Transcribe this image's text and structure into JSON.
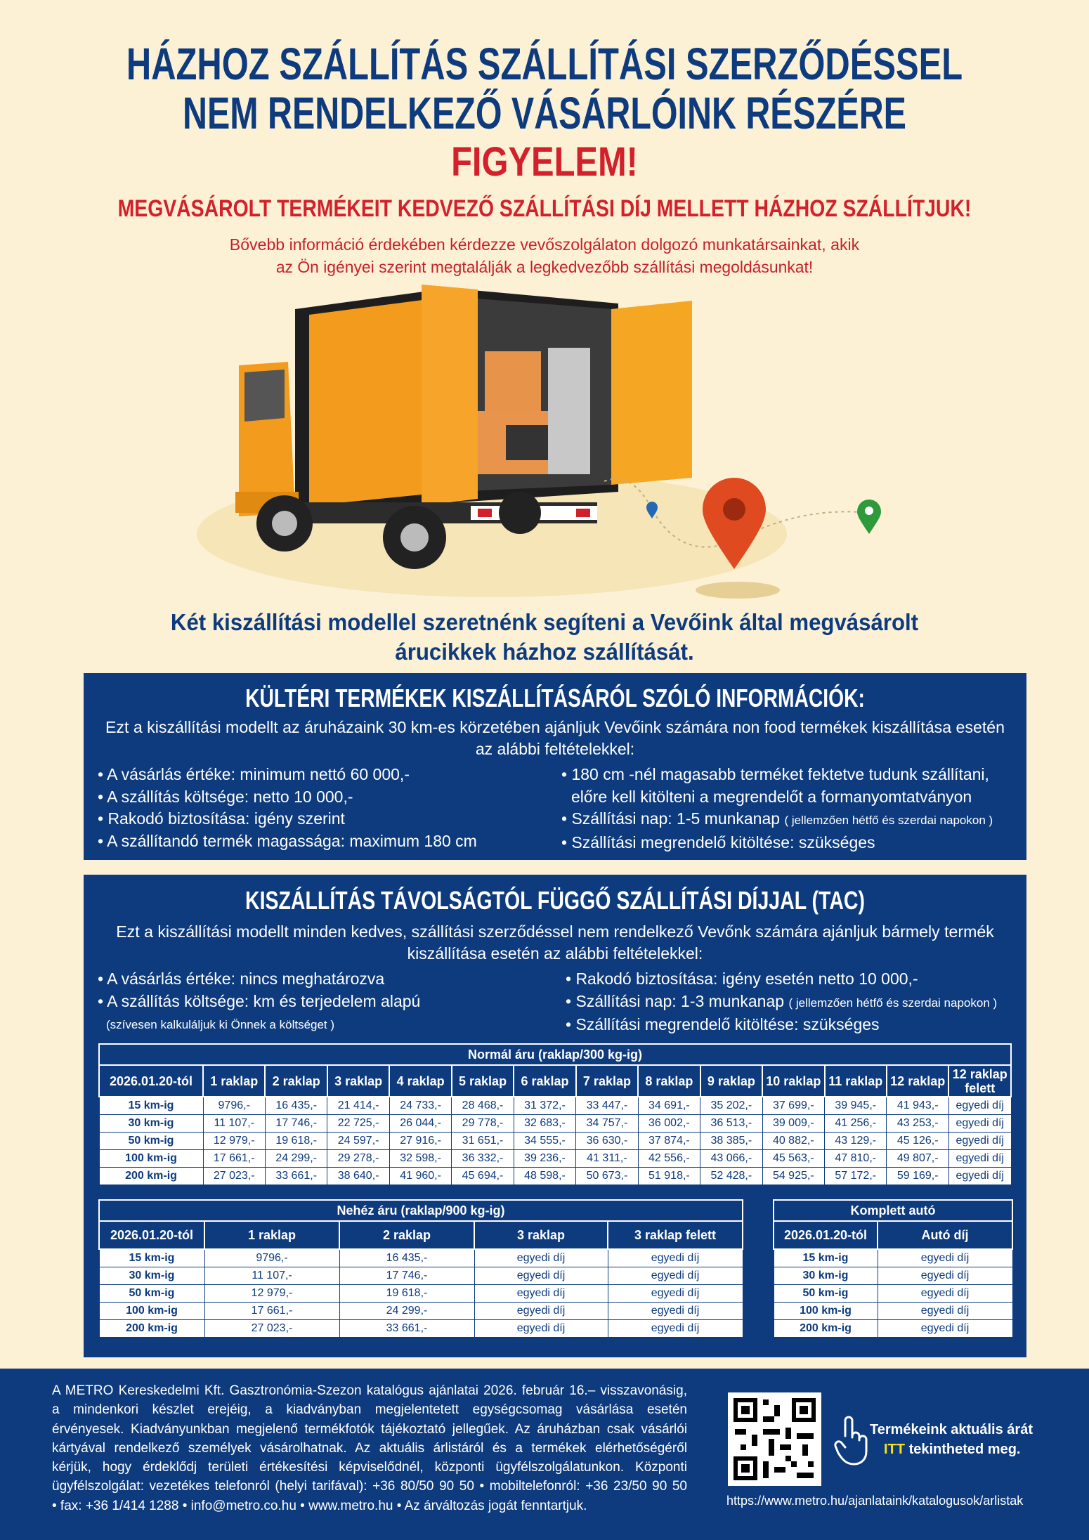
{
  "header": {
    "title_lines": [
      "HÁZHOZ SZÁLLÍTÁS SZÁLLÍTÁSI SZERZŐDÉSSEL",
      "NEM RENDELKEZŐ VÁSÁRLÓINK RÉSZÉRE"
    ],
    "attention": "FIGYELEM!",
    "subheading": "MEGVÁSÁROLT TERMÉKEIT KEDVEZŐ SZÁLLÍTÁSI DÍJ MELLETT HÁZHOZ SZÁLLÍTJUK!",
    "info_lines": [
      "Bővebb információ érdekében kérdezze vevőszolgálaton dolgozó munkatársainkat, akik",
      "az Ön igényei szerint megtalálják a legkedvezőbb szállítási megoldásunkat!"
    ]
  },
  "intro_lines": [
    "Két kiszállítási modellel szeretnénk segíteni a Vevőink által megvásárolt",
    "árucikkek házhoz szállítását."
  ],
  "section1": {
    "title": "KÜLTÉRI TERMÉKEK KISZÁLLÍTÁSÁRÓL SZÓLÓ INFORMÁCIÓK:",
    "description_lines": [
      "Ezt a kiszállítási modellt az áruházaink 30 km-es körzetében ajánljuk Vevőink számára non food termékek kiszállítása esetén",
      "az alábbi feltételekkel:"
    ],
    "left_items": [
      {
        "text": "• A vásárlás értéke: minimum nettó 60 000,-"
      },
      {
        "text": "• A szállítás költsége: netto 10 000,-"
      },
      {
        "text": "• Rakodó biztosítása: igény szerint"
      },
      {
        "text": "• A szállítandó termék magassága: maximum 180 cm"
      }
    ],
    "right_items": [
      {
        "text": "• 180 cm -nél magasabb terméket fektetve tudunk szállítani,"
      },
      {
        "text": "előre kell kitölteni a megrendelőt a formanyomtatványon"
      },
      {
        "text": "• Szállítási nap: 1-5 munkanap",
        "note": "( jellemzően hétfő és szerdai napokon )"
      },
      {
        "text": "• Szállítási megrendelő kitöltése: szükséges"
      }
    ]
  },
  "section2": {
    "title": "KISZÁLLÍTÁS TÁVOLSÁGTÓL FÜGGŐ SZÁLLÍTÁSI DÍJJAL (TAC)",
    "description_lines": [
      "Ezt a kiszállítási modellt minden kedves, szállítási szerződéssel nem rendelkező Vevőnk számára ajánljuk bármely termék",
      "kiszállítása esetén az alábbi feltételekkel:"
    ],
    "left_items": [
      {
        "text": "• A vásárlás értéke: nincs meghatározva"
      },
      {
        "text": "• A szállítás költsége: km és terjedelem alapú"
      },
      {
        "note": "(szívesen kalkuláljuk ki Önnek a költséget )"
      }
    ],
    "right_items": [
      {
        "text": "• Rakodó biztosítása: igény esetén netto 10 000,-"
      },
      {
        "text": "• Szállítási nap: 1-3 munkanap",
        "note": "( jellemzően hétfő és szerdai napokon )"
      },
      {
        "text": "• Szállítási megrendelő kitöltése: szükséges"
      }
    ],
    "table_normal": {
      "caption": "Normál áru (raklap/300 kg-ig)",
      "header": [
        "2026.01.20-tól",
        "1 raklap",
        "2 raklap",
        "3 raklap",
        "4 raklap",
        "5 raklap",
        "6 raklap",
        "7 raklap",
        "8 raklap",
        "9 raklap",
        "10 raklap",
        "11 raklap",
        "12 raklap",
        "12 raklap felett"
      ],
      "rows": [
        [
          "15 km-ig",
          "9796,-",
          "16 435,-",
          "21 414,-",
          "24 733,-",
          "28 468,-",
          "31 372,-",
          "33 447,-",
          "34 691,-",
          "35 202,-",
          "37 699,-",
          "39 945,-",
          "41 943,-",
          "egyedi díj"
        ],
        [
          "30 km-ig",
          "11 107,-",
          "17 746,-",
          "22 725,-",
          "26 044,-",
          "29 778,-",
          "32 683,-",
          "34 757,-",
          "36 002,-",
          "36 513,-",
          "39 009,-",
          "41 256,-",
          "43 253,-",
          "egyedi díj"
        ],
        [
          "50 km-ig",
          "12 979,-",
          "19 618,-",
          "24 597,-",
          "27 916,-",
          "31 651,-",
          "34 555,-",
          "36 630,-",
          "37 874,-",
          "38 385,-",
          "40 882,-",
          "43 129,-",
          "45 126,-",
          "egyedi díj"
        ],
        [
          "100 km-ig",
          "17 661,-",
          "24 299,-",
          "29 278,-",
          "32 598,-",
          "36 332,-",
          "39 236,-",
          "41 311,-",
          "42 556,-",
          "43 066,-",
          "45 563,-",
          "47 810,-",
          "49 807,-",
          "egyedi díj"
        ],
        [
          "200 km-ig",
          "27 023,-",
          "33 661,-",
          "38 640,-",
          "41 960,-",
          "45 694,-",
          "48 598,-",
          "50 673,-",
          "51 918,-",
          "52 428,-",
          "54 925,-",
          "57 172,-",
          "59 169,-",
          "egyedi díj"
        ]
      ]
    },
    "table_heavy": {
      "caption": "Nehéz áru (raklap/900 kg-ig)",
      "header": [
        "2026.01.20-tól",
        "1 raklap",
        "2 raklap",
        "3 raklap",
        "3 raklap felett"
      ],
      "rows": [
        [
          "15 km-ig",
          "9796,-",
          "16 435,-",
          "egyedi díj",
          "egyedi díj"
        ],
        [
          "30 km-ig",
          "11 107,-",
          "17 746,-",
          "egyedi díj",
          "egyedi díj"
        ],
        [
          "50 km-ig",
          "12 979,-",
          "19 618,-",
          "egyedi díj",
          "egyedi díj"
        ],
        [
          "100 km-ig",
          "17 661,-",
          "24 299,-",
          "egyedi díj",
          "egyedi díj"
        ],
        [
          "200 km-ig",
          "27 023,-",
          "33 661,-",
          "egyedi díj",
          "egyedi díj"
        ]
      ]
    },
    "table_complete": {
      "caption": "Komplett autó",
      "header": [
        "2026.01.20-tól",
        "Autó díj"
      ],
      "rows": [
        [
          "15 km-ig",
          "egyedi díj"
        ],
        [
          "30 km-ig",
          "egyedi díj"
        ],
        [
          "50 km-ig",
          "egyedi díj"
        ],
        [
          "100 km-ig",
          "egyedi díj"
        ],
        [
          "200 km-ig",
          "egyedi díj"
        ]
      ]
    }
  },
  "footer": {
    "legal_lines": [
      "A METRO Kereskedelmi Kft. Gasztronómia-Szezon katalógus ajánlatai 2026. február 16.– visszavonásig,",
      "a mindenkori készlet erejéig, a kiadványban megjelentetett egységcsomag vásárlása esetén",
      "érvényesek. Kiadványunkban megjelenő termékfotók tájékoztató jellegűek. Az áruházban csak vásárlói",
      "kártyával rendelkező személyek vásárolhatnak. Az aktuális árlistáról és a termékek elérhetőségéről",
      "kérjük, hogy érdeklődj területi értékesítési képviselődnél, központi ügyfélszolgálatunkon. Központi",
      "ügyfélszolgálat: vezetékes telefonról (helyi tarifával): +36 80/50 90 50 • mobiltelefonról: +36 23/50 90 50",
      "• fax: +36 1/414 1288 • info@metro.co.hu • www.metro.hu • Az árváltozás jogát fenntartjuk."
    ],
    "cta_line1": "Termékeink aktuális árát",
    "cta_highlight": "ITT",
    "cta_rest": "tekintheted meg.",
    "url": "https://www.metro.hu/ajanlataink/katalogusok/arlistak"
  }
}
